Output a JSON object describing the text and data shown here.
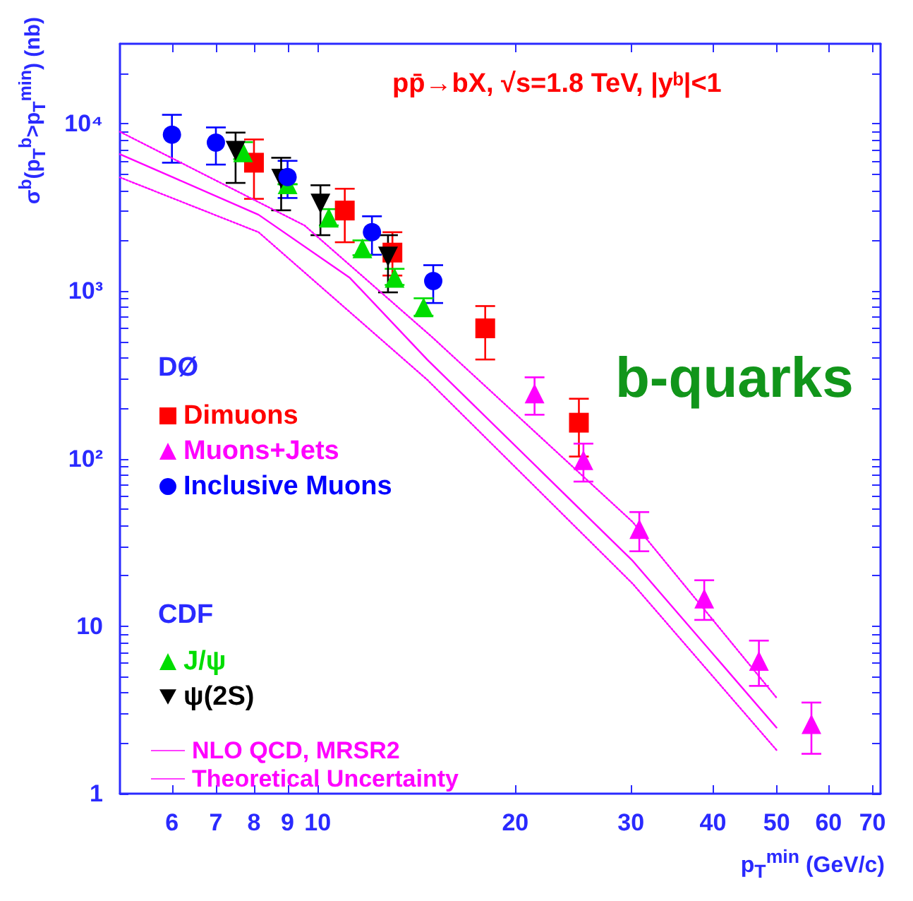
{
  "chart_data": {
    "type": "scatter",
    "ylabel": "σ$^{b}$(p$_{T}$$^{b}$>p$_{T}$$^{min}$) (nb)",
    "xlabel": "p$_{T}$$^{min}$ (GeV/c)",
    "annotations": [
      "pp̄→bX, √s=1.8 TeV, |yᵇ|<1",
      "b-quarks",
      "DØ",
      "CDF"
    ],
    "log": "xy",
    "xlim": [
      5,
      72
    ],
    "xticks": [
      6,
      7,
      8,
      9,
      10,
      20,
      30,
      40,
      50,
      60,
      70
    ],
    "ylim": [
      1,
      30000
    ],
    "yticks": [
      1,
      {
        "value": 2,
        "label": null
      },
      {
        "value": 3,
        "label": null
      },
      {
        "value": 4,
        "label": null
      },
      {
        "value": 5,
        "label": null
      },
      {
        "value": 6,
        "label": null
      },
      {
        "value": 7,
        "label": null
      },
      {
        "value": 8,
        "label": null
      },
      {
        "value": 9,
        "label": null
      },
      10,
      {
        "value": 20,
        "label": null
      },
      {
        "value": 30,
        "label": null
      },
      {
        "value": 40,
        "label": null
      },
      {
        "value": 50,
        "label": null
      },
      {
        "value": 60,
        "label": null
      },
      {
        "value": 70,
        "label": null
      },
      {
        "value": 80,
        "label": null
      },
      {
        "value": 90,
        "label": null
      },
      {
        "value": 100,
        "label": "10²"
      },
      {
        "value": 200,
        "label": null
      },
      {
        "value": 300,
        "label": null
      },
      {
        "value": 400,
        "label": null
      },
      {
        "value": 500,
        "label": null
      },
      {
        "value": 600,
        "label": null
      },
      {
        "value": 700,
        "label": null
      },
      {
        "value": 800,
        "label": null
      },
      {
        "value": 900,
        "label": null
      },
      {
        "value": 1000,
        "label": "10³"
      },
      {
        "value": 2000,
        "label": null
      },
      {
        "value": 3000,
        "label": null
      },
      {
        "value": 4000,
        "label": null
      },
      {
        "value": 5000,
        "label": null
      },
      {
        "value": 6000,
        "label": null
      },
      {
        "value": 7000,
        "label": null
      },
      {
        "value": 8000,
        "label": null
      },
      {
        "value": 9000,
        "label": null
      },
      {
        "value": 10000,
        "label": "10⁴"
      },
      {
        "value": 20000,
        "label": null
      }
    ],
    "grid": false,
    "legend": "left",
    "series": [
      {
        "name": "Dimuons",
        "color": "#ff0000",
        "marker": "square",
        "x": [
          8.0,
          11.0,
          13.0,
          18.0,
          25.0
        ],
        "values": [
          5850,
          3030,
          1700,
          600,
          164
        ],
        "errors": [
          [
            3560,
            8050
          ],
          [
            1960,
            4090
          ],
          [
            1240,
            2250
          ],
          [
            391,
            815
          ],
          [
            103,
            228
          ]
        ]
      },
      {
        "name": "Muons+Jets",
        "color": "#ff00ff",
        "marker": "triangle",
        "x": [
          21.4,
          25.4,
          30.9,
          38.8,
          47.0,
          56.5
        ],
        "values": [
          245,
          98,
          38,
          14.6,
          6.2,
          2.6
        ],
        "errors": [
          [
            183,
            306
          ],
          [
            73,
            123
          ],
          [
            28,
            48
          ],
          [
            10.9,
            18.8
          ],
          [
            4.4,
            8.2
          ],
          [
            1.73,
            3.5
          ]
        ]
      },
      {
        "name": "Inclusive Muons",
        "color": "#0000ff",
        "marker": "circle",
        "x": [
          6.0,
          7.0,
          9.0,
          12.1,
          15.0
        ],
        "values": [
          8600,
          7700,
          4800,
          2250,
          1150
        ],
        "errors": [
          [
            5850,
            11300
          ],
          [
            5700,
            9500
          ],
          [
            3600,
            6000
          ],
          [
            1650,
            2800
          ],
          [
            850,
            1430
          ]
        ]
      },
      {
        "name": "J/ψ",
        "color": "#00dd00",
        "marker": "triangle",
        "x": [
          7.7,
          9.0,
          10.4,
          11.7,
          13.1,
          14.5
        ],
        "values": [
          6750,
          4350,
          2750,
          1800,
          1200,
          800
        ],
        "errors": [
          [
            6140,
            7760
          ],
          null,
          [
            2470,
            3090
          ],
          [
            1640,
            2010
          ],
          [
            1090,
            1360
          ],
          [
            714,
            907
          ]
        ]
      },
      {
        "name": "ψ(2S)",
        "color": "#000000",
        "marker": "triangle-down",
        "x": [
          7.5,
          8.8,
          10.1,
          12.8
        ],
        "values": [
          6900,
          4700,
          3340,
          1610
        ],
        "errors": [
          [
            4430,
            8850
          ],
          [
            3040,
            6260
          ],
          [
            2160,
            4290
          ],
          [
            984,
            2160
          ]
        ]
      },
      {
        "name": "NLO QCD, MRSR2",
        "color": "#ff00ff",
        "type": "line",
        "marker": "none",
        "line_style": "solid",
        "x": [
          5,
          8.13,
          11.2,
          14.7,
          30.2,
          50
        ],
        "values": [
          6580,
          2860,
          1200,
          389,
          24.5,
          2.48
        ]
      },
      {
        "name": "Theoretical Uncertainty",
        "color": "#ff00ff",
        "type": "line",
        "marker": "none",
        "line_style": "dotted",
        "x": [
          5,
          9.55,
          14.95,
          30.2,
          50
        ],
        "values": [
          8950,
          2470,
          531,
          41.8,
          3.74
        ]
      },
      {
        "color": "#ff00ff",
        "type": "line",
        "marker": "none",
        "line_style": "dotted",
        "x": [
          5,
          8.13,
          14.7,
          30.2,
          50
        ],
        "values": [
          4780,
          2250,
          295,
          17.9,
          1.82
        ]
      }
    ]
  }
}
